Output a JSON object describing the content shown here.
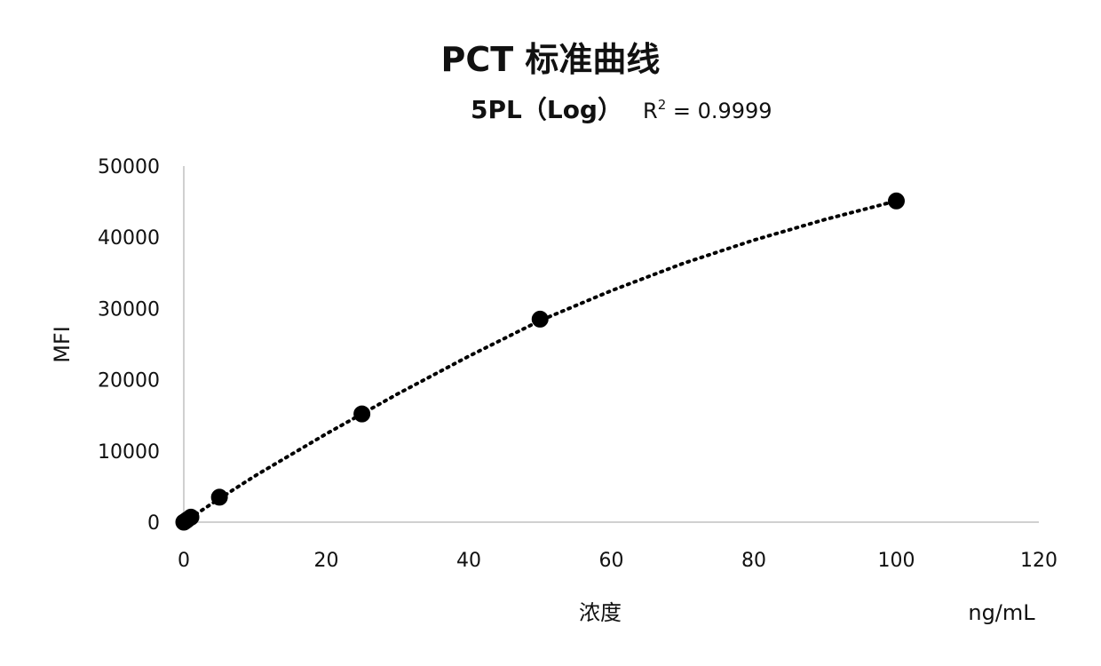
{
  "chart_data": {
    "type": "scatter",
    "title": "PCT 标准曲线",
    "subtitle": "5PL（Log）",
    "annotation": {
      "r2_label": "R",
      "r2_sup": "2",
      "r2_value": " = 0.9999"
    },
    "xlabel": "浓度",
    "ylabel": "MFI",
    "x_unit_label": "ng/mL",
    "xlim": [
      0,
      120
    ],
    "ylim": [
      0,
      50000
    ],
    "x_ticks": [
      0,
      20,
      40,
      60,
      80,
      100,
      120
    ],
    "y_ticks": [
      0,
      10000,
      20000,
      30000,
      40000,
      50000
    ],
    "grid": false,
    "legend": "none",
    "series": [
      {
        "values": [
          {
            "x": 0,
            "y": 0
          },
          {
            "x": 0.25,
            "y": 160
          },
          {
            "x": 0.5,
            "y": 350
          },
          {
            "x": 1,
            "y": 700
          },
          {
            "x": 5,
            "y": 3500
          },
          {
            "x": 25,
            "y": 15200
          },
          {
            "x": 50,
            "y": 28500
          },
          {
            "x": 100,
            "y": 45100
          }
        ]
      }
    ],
    "trendline": {
      "type": "5PL",
      "style": "dotted",
      "points": [
        {
          "x": 0,
          "y": 0
        },
        {
          "x": 5,
          "y": 3300
        },
        {
          "x": 10,
          "y": 6500
        },
        {
          "x": 20,
          "y": 12400
        },
        {
          "x": 30,
          "y": 18000
        },
        {
          "x": 40,
          "y": 23300
        },
        {
          "x": 50,
          "y": 28300
        },
        {
          "x": 60,
          "y": 32500
        },
        {
          "x": 70,
          "y": 36300
        },
        {
          "x": 80,
          "y": 39600
        },
        {
          "x": 90,
          "y": 42500
        },
        {
          "x": 100,
          "y": 45100
        }
      ]
    },
    "colors": {
      "marker": "#000000",
      "trendline": "#000000",
      "axis": "#000000"
    }
  }
}
